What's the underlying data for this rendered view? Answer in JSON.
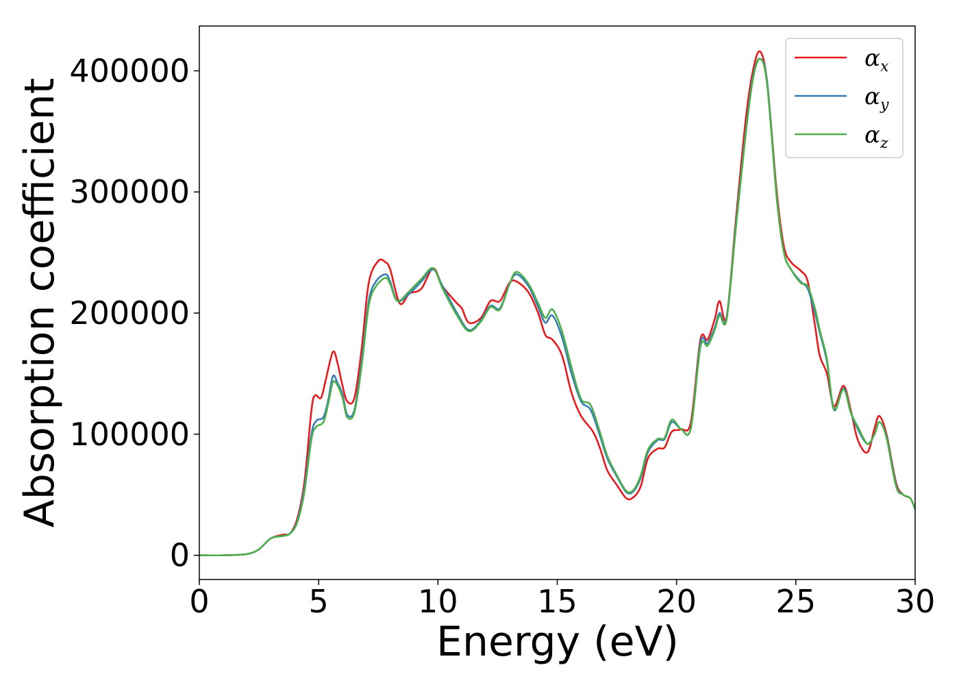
{
  "chart_data": {
    "type": "line",
    "title": "",
    "xlabel": "Energy (eV)",
    "ylabel": "Absorption coefficient",
    "xlim": [
      0,
      30
    ],
    "ylim": [
      -20000,
      437000
    ],
    "xticks": [
      0,
      5,
      10,
      15,
      20,
      25,
      30
    ],
    "yticks": [
      0,
      100000,
      200000,
      300000,
      400000
    ],
    "grid": false,
    "legend_position": "top-right",
    "series": [
      {
        "name": "α_x",
        "label_main": "α",
        "label_sub": "x",
        "color": "#e41a1c",
        "points": [
          [
            0,
            0
          ],
          [
            1,
            0
          ],
          [
            2,
            1000
          ],
          [
            2.5,
            5000
          ],
          [
            3,
            14000
          ],
          [
            3.5,
            17000
          ],
          [
            3.8,
            18000
          ],
          [
            4.1,
            30000
          ],
          [
            4.4,
            60000
          ],
          [
            4.7,
            120000
          ],
          [
            4.85,
            132000
          ],
          [
            5.1,
            130000
          ],
          [
            5.3,
            145000
          ],
          [
            5.6,
            168000
          ],
          [
            5.8,
            158000
          ],
          [
            6.0,
            140000
          ],
          [
            6.2,
            127000
          ],
          [
            6.5,
            130000
          ],
          [
            6.8,
            170000
          ],
          [
            7.1,
            225000
          ],
          [
            7.5,
            243000
          ],
          [
            7.8,
            242000
          ],
          [
            8.0,
            236000
          ],
          [
            8.4,
            208000
          ],
          [
            8.8,
            216000
          ],
          [
            9.3,
            220000
          ],
          [
            9.8,
            237000
          ],
          [
            10.2,
            222000
          ],
          [
            10.8,
            208000
          ],
          [
            11.0,
            204000
          ],
          [
            11.3,
            192000
          ],
          [
            11.8,
            196000
          ],
          [
            12.2,
            210000
          ],
          [
            12.6,
            210000
          ],
          [
            13.0,
            225000
          ],
          [
            13.3,
            226000
          ],
          [
            13.8,
            217000
          ],
          [
            14.2,
            200000
          ],
          [
            14.5,
            182000
          ],
          [
            14.8,
            178000
          ],
          [
            15.2,
            165000
          ],
          [
            15.6,
            134000
          ],
          [
            16.0,
            115000
          ],
          [
            16.5,
            102000
          ],
          [
            16.8,
            88000
          ],
          [
            17.1,
            70000
          ],
          [
            17.5,
            58000
          ],
          [
            17.9,
            47000
          ],
          [
            18.2,
            48000
          ],
          [
            18.5,
            57000
          ],
          [
            18.8,
            80000
          ],
          [
            19.2,
            88000
          ],
          [
            19.5,
            89000
          ],
          [
            19.8,
            102000
          ],
          [
            20.2,
            104000
          ],
          [
            20.6,
            110000
          ],
          [
            21.0,
            178000
          ],
          [
            21.3,
            178000
          ],
          [
            21.6,
            195000
          ],
          [
            21.8,
            210000
          ],
          [
            22.1,
            197000
          ],
          [
            22.5,
            280000
          ],
          [
            22.9,
            360000
          ],
          [
            23.2,
            400000
          ],
          [
            23.5,
            416000
          ],
          [
            23.8,
            390000
          ],
          [
            24.2,
            300000
          ],
          [
            24.5,
            255000
          ],
          [
            24.8,
            242000
          ],
          [
            25.2,
            235000
          ],
          [
            25.5,
            226000
          ],
          [
            25.8,
            190000
          ],
          [
            26.0,
            165000
          ],
          [
            26.3,
            150000
          ],
          [
            26.6,
            123000
          ],
          [
            27.0,
            140000
          ],
          [
            27.3,
            120000
          ],
          [
            27.6,
            95000
          ],
          [
            28.0,
            85000
          ],
          [
            28.3,
            105000
          ],
          [
            28.5,
            115000
          ],
          [
            28.8,
            100000
          ],
          [
            29.2,
            60000
          ],
          [
            29.5,
            50000
          ],
          [
            29.8,
            47000
          ],
          [
            30,
            38000
          ]
        ]
      },
      {
        "name": "α_y",
        "label_main": "α",
        "label_sub": "y",
        "color": "#377eb8",
        "points": [
          [
            0,
            0
          ],
          [
            1,
            0
          ],
          [
            2,
            1000
          ],
          [
            2.5,
            5000
          ],
          [
            3,
            14000
          ],
          [
            3.5,
            16000
          ],
          [
            3.8,
            18000
          ],
          [
            4.1,
            28000
          ],
          [
            4.4,
            55000
          ],
          [
            4.7,
            100000
          ],
          [
            4.9,
            111000
          ],
          [
            5.2,
            114000
          ],
          [
            5.4,
            128000
          ],
          [
            5.6,
            148000
          ],
          [
            5.8,
            142000
          ],
          [
            6.0,
            133000
          ],
          [
            6.2,
            116000
          ],
          [
            6.5,
            120000
          ],
          [
            6.8,
            160000
          ],
          [
            7.1,
            210000
          ],
          [
            7.4,
            226000
          ],
          [
            7.8,
            232000
          ],
          [
            8.0,
            226000
          ],
          [
            8.3,
            210000
          ],
          [
            8.8,
            216000
          ],
          [
            9.3,
            226000
          ],
          [
            9.8,
            236000
          ],
          [
            10.2,
            222000
          ],
          [
            10.8,
            200000
          ],
          [
            11.3,
            186000
          ],
          [
            11.8,
            194000
          ],
          [
            12.2,
            206000
          ],
          [
            12.6,
            204000
          ],
          [
            13.0,
            224000
          ],
          [
            13.3,
            232000
          ],
          [
            13.8,
            222000
          ],
          [
            14.2,
            205000
          ],
          [
            14.5,
            192000
          ],
          [
            14.8,
            198000
          ],
          [
            15.2,
            180000
          ],
          [
            15.6,
            150000
          ],
          [
            16.0,
            127000
          ],
          [
            16.4,
            120000
          ],
          [
            16.8,
            98000
          ],
          [
            17.1,
            80000
          ],
          [
            17.5,
            65000
          ],
          [
            17.9,
            52000
          ],
          [
            18.2,
            53000
          ],
          [
            18.5,
            64000
          ],
          [
            18.8,
            85000
          ],
          [
            19.2,
            95000
          ],
          [
            19.5,
            96000
          ],
          [
            19.8,
            110000
          ],
          [
            20.2,
            104000
          ],
          [
            20.6,
            105000
          ],
          [
            21.0,
            175000
          ],
          [
            21.3,
            175000
          ],
          [
            21.6,
            188000
          ],
          [
            21.8,
            200000
          ],
          [
            22.1,
            196000
          ],
          [
            22.5,
            275000
          ],
          [
            22.9,
            350000
          ],
          [
            23.2,
            395000
          ],
          [
            23.5,
            410000
          ],
          [
            23.8,
            390000
          ],
          [
            24.2,
            295000
          ],
          [
            24.5,
            250000
          ],
          [
            24.8,
            236000
          ],
          [
            25.2,
            226000
          ],
          [
            25.5,
            220000
          ],
          [
            25.8,
            200000
          ],
          [
            26.0,
            184000
          ],
          [
            26.3,
            160000
          ],
          [
            26.6,
            120000
          ],
          [
            27.0,
            138000
          ],
          [
            27.3,
            118000
          ],
          [
            27.6,
            104000
          ],
          [
            28.0,
            92000
          ],
          [
            28.3,
            100000
          ],
          [
            28.5,
            110000
          ],
          [
            28.8,
            98000
          ],
          [
            29.2,
            58000
          ],
          [
            29.5,
            50000
          ],
          [
            29.8,
            47000
          ],
          [
            30,
            38000
          ]
        ]
      },
      {
        "name": "α_z",
        "label_main": "α",
        "label_sub": "z",
        "color": "#4daf4a",
        "points": [
          [
            0,
            0
          ],
          [
            1,
            0
          ],
          [
            2,
            1000
          ],
          [
            2.5,
            5000
          ],
          [
            3,
            14000
          ],
          [
            3.5,
            16000
          ],
          [
            3.8,
            18000
          ],
          [
            4.1,
            27000
          ],
          [
            4.4,
            52000
          ],
          [
            4.7,
            96000
          ],
          [
            4.9,
            106000
          ],
          [
            5.2,
            110000
          ],
          [
            5.4,
            125000
          ],
          [
            5.6,
            143000
          ],
          [
            5.8,
            140000
          ],
          [
            6.0,
            130000
          ],
          [
            6.2,
            114000
          ],
          [
            6.5,
            118000
          ],
          [
            6.8,
            156000
          ],
          [
            7.1,
            206000
          ],
          [
            7.4,
            222000
          ],
          [
            7.8,
            229000
          ],
          [
            8.0,
            224000
          ],
          [
            8.3,
            210000
          ],
          [
            8.8,
            218000
          ],
          [
            9.3,
            228000
          ],
          [
            9.8,
            237000
          ],
          [
            10.2,
            220000
          ],
          [
            10.8,
            198000
          ],
          [
            11.3,
            185000
          ],
          [
            11.8,
            193000
          ],
          [
            12.2,
            205000
          ],
          [
            12.6,
            203000
          ],
          [
            13.0,
            224000
          ],
          [
            13.3,
            234000
          ],
          [
            13.8,
            224000
          ],
          [
            14.2,
            208000
          ],
          [
            14.5,
            196000
          ],
          [
            14.8,
            203000
          ],
          [
            15.2,
            185000
          ],
          [
            15.6,
            155000
          ],
          [
            16.0,
            129000
          ],
          [
            16.4,
            124000
          ],
          [
            16.8,
            101000
          ],
          [
            17.1,
            82000
          ],
          [
            17.5,
            66000
          ],
          [
            17.9,
            53000
          ],
          [
            18.2,
            54000
          ],
          [
            18.5,
            66000
          ],
          [
            18.8,
            87000
          ],
          [
            19.2,
            96000
          ],
          [
            19.5,
            97000
          ],
          [
            19.8,
            112000
          ],
          [
            20.2,
            104000
          ],
          [
            20.6,
            105000
          ],
          [
            21.0,
            172000
          ],
          [
            21.3,
            173000
          ],
          [
            21.6,
            186000
          ],
          [
            21.8,
            198000
          ],
          [
            22.1,
            195000
          ],
          [
            22.5,
            273000
          ],
          [
            22.9,
            348000
          ],
          [
            23.2,
            393000
          ],
          [
            23.5,
            410000
          ],
          [
            23.8,
            388000
          ],
          [
            24.2,
            295000
          ],
          [
            24.5,
            250000
          ],
          [
            24.8,
            236000
          ],
          [
            25.2,
            225000
          ],
          [
            25.5,
            222000
          ],
          [
            25.8,
            204000
          ],
          [
            26.0,
            186000
          ],
          [
            26.3,
            162000
          ],
          [
            26.6,
            121000
          ],
          [
            27.0,
            137000
          ],
          [
            27.3,
            118000
          ],
          [
            27.6,
            106000
          ],
          [
            28.0,
            92000
          ],
          [
            28.3,
            100000
          ],
          [
            28.5,
            110000
          ],
          [
            28.8,
            97000
          ],
          [
            29.2,
            57000
          ],
          [
            29.5,
            50000
          ],
          [
            29.8,
            47000
          ],
          [
            30,
            38000
          ]
        ]
      }
    ]
  }
}
